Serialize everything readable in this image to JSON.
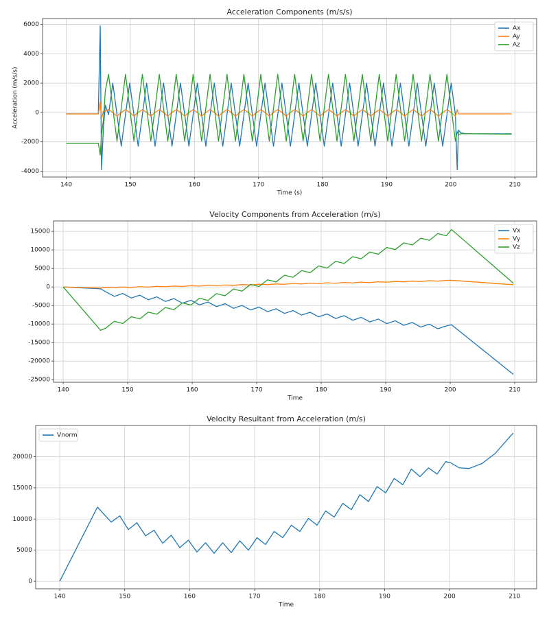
{
  "chart_data": [
    {
      "type": "line",
      "title": "Acceleration Components (m/s/s)",
      "xlabel": "Time (s)",
      "ylabel": "Acceleration (m/s/s)",
      "xlim": [
        136.3,
        213.4
      ],
      "ylim": [
        -4400,
        6400
      ],
      "xticks": [
        140,
        150,
        160,
        170,
        180,
        190,
        200,
        210
      ],
      "yticks": [
        -4000,
        -2000,
        0,
        2000,
        4000,
        6000
      ],
      "grid": true,
      "legend": "upper right",
      "x": [
        140,
        145.0,
        145.3,
        145.5,
        145.8,
        146.1,
        146.6,
        147.26,
        147.92,
        148.58,
        149.24,
        149.9,
        150.56,
        151.22,
        151.88,
        152.54,
        153.2,
        153.86,
        154.52,
        155.18,
        155.84,
        156.5,
        157.16,
        157.82,
        158.48,
        159.14,
        159.8,
        160.46,
        161.12,
        161.78,
        162.44,
        163.1,
        163.76,
        164.42,
        165.08,
        165.74,
        166.4,
        167.06,
        167.72,
        168.38,
        169.04,
        169.7,
        170.36,
        171.02,
        171.68,
        172.34,
        173.0,
        173.66,
        174.32,
        174.98,
        175.64,
        176.3,
        176.96,
        177.62,
        178.28,
        178.94,
        179.6,
        180.26,
        180.92,
        181.58,
        182.24,
        182.9,
        183.56,
        184.22,
        184.88,
        185.54,
        186.2,
        186.86,
        187.52,
        188.18,
        188.84,
        189.5,
        190.16,
        190.82,
        191.48,
        192.14,
        192.8,
        193.46,
        194.12,
        194.78,
        195.44,
        196.1,
        196.76,
        197.42,
        198.08,
        198.74,
        199.4,
        200.06,
        200.72,
        201.0,
        201.2,
        201.6,
        202.5,
        209.5
      ],
      "series": [
        {
          "name": "Ax",
          "color": "#1f77b4",
          "values": [
            -100,
            -100,
            5900,
            -3900,
            -1000,
            500,
            -150,
            2000,
            -150,
            -2300,
            -150,
            2000,
            -150,
            -2300,
            -150,
            2000,
            -150,
            -2300,
            -150,
            2000,
            -150,
            -2300,
            -150,
            2000,
            -150,
            -2300,
            -150,
            2000,
            -150,
            -2300,
            -150,
            2000,
            -150,
            -2300,
            -150,
            2000,
            -150,
            -2300,
            -150,
            2000,
            -150,
            -2300,
            -150,
            2000,
            -150,
            -2300,
            -150,
            2000,
            -150,
            -2300,
            -150,
            2000,
            -150,
            -2300,
            -150,
            2000,
            -150,
            -2300,
            -150,
            2000,
            -150,
            -2300,
            -150,
            2000,
            -150,
            -2300,
            -150,
            2000,
            -150,
            -2300,
            -150,
            2000,
            -150,
            -2300,
            -150,
            2000,
            -150,
            -2300,
            -150,
            2000,
            -150,
            -2300,
            -150,
            2000,
            -150,
            -2300,
            -150,
            2000,
            -150,
            -3900,
            -1200,
            -1400,
            -1450,
            -1450
          ]
        },
        {
          "name": "Ay",
          "color": "#ff7f0e",
          "values": [
            -100,
            -100,
            700,
            -400,
            100,
            100,
            200,
            0,
            -250,
            0,
            200,
            0,
            -250,
            0,
            200,
            0,
            -250,
            0,
            200,
            0,
            -250,
            0,
            200,
            0,
            -250,
            0,
            200,
            0,
            -250,
            0,
            200,
            0,
            -250,
            0,
            200,
            0,
            -250,
            0,
            200,
            0,
            -250,
            0,
            200,
            0,
            -250,
            0,
            200,
            0,
            -250,
            0,
            200,
            0,
            -250,
            0,
            200,
            0,
            -250,
            0,
            200,
            0,
            -250,
            0,
            200,
            0,
            -250,
            0,
            200,
            0,
            -250,
            0,
            200,
            0,
            -250,
            0,
            200,
            0,
            -250,
            0,
            200,
            0,
            -250,
            0,
            200,
            0,
            -250,
            0,
            200,
            0,
            -250,
            200,
            -100,
            -100,
            -100,
            -100
          ]
        },
        {
          "name": "Az",
          "color": "#2ca02c",
          "values": [
            -2100,
            -2100,
            -2900,
            -1500,
            -500,
            1500,
            2600,
            300,
            -1950,
            300,
            2600,
            300,
            -1950,
            300,
            2600,
            300,
            -1950,
            300,
            2600,
            300,
            -1950,
            300,
            2600,
            300,
            -1950,
            300,
            2600,
            300,
            -1950,
            300,
            2600,
            300,
            -1950,
            300,
            2600,
            300,
            -1950,
            300,
            2600,
            300,
            -1950,
            300,
            2600,
            300,
            -1950,
            300,
            2600,
            300,
            -1950,
            300,
            2600,
            300,
            -1950,
            300,
            2600,
            300,
            -1950,
            300,
            2600,
            300,
            -1950,
            300,
            2600,
            300,
            -1950,
            300,
            2600,
            300,
            -1950,
            300,
            2600,
            300,
            -1950,
            300,
            2600,
            300,
            -1950,
            300,
            2600,
            300,
            -1950,
            300,
            2600,
            300,
            -1950,
            300,
            2600,
            300,
            -1950,
            -1300,
            -1500,
            -1450,
            -1450,
            -1480
          ]
        }
      ]
    },
    {
      "type": "line",
      "title": "Velocity Components from Acceleration (m/s)",
      "xlabel": "Time",
      "xlim": [
        138.5,
        213.4
      ],
      "ylim": [
        -25700,
        17800
      ],
      "xticks": [
        140,
        150,
        160,
        170,
        180,
        190,
        200,
        210
      ],
      "yticks": [
        -25000,
        -20000,
        -15000,
        -10000,
        -5000,
        0,
        5000,
        10000,
        15000
      ],
      "grid": true,
      "legend": "upper right",
      "x": [
        140,
        145.8,
        146.6,
        147.92,
        149.24,
        150.56,
        151.88,
        153.2,
        154.52,
        155.84,
        157.16,
        158.48,
        159.8,
        161.12,
        162.44,
        163.76,
        165.08,
        166.4,
        167.72,
        169.04,
        170.36,
        171.68,
        173.0,
        174.32,
        175.64,
        176.96,
        178.28,
        179.6,
        180.92,
        182.24,
        183.56,
        184.88,
        186.2,
        187.52,
        188.84,
        190.16,
        191.48,
        192.8,
        194.12,
        195.44,
        196.76,
        198.08,
        199.4,
        200.2,
        209.8
      ],
      "series": [
        {
          "name": "Vx",
          "color": "#1f77b4",
          "values": [
            0,
            -500,
            -1300,
            -2530,
            -1760,
            -2990,
            -2220,
            -3450,
            -2680,
            -3910,
            -3140,
            -4370,
            -3600,
            -4830,
            -4060,
            -5290,
            -4520,
            -5750,
            -4980,
            -6210,
            -5440,
            -6670,
            -5900,
            -7130,
            -6360,
            -7590,
            -6820,
            -8050,
            -7280,
            -8510,
            -7740,
            -8970,
            -8200,
            -9430,
            -8660,
            -9890,
            -9120,
            -10350,
            -9580,
            -10810,
            -10040,
            -11270,
            -10500,
            -10200,
            -23600
          ]
        },
        {
          "name": "Vy",
          "color": "#ff7f0e",
          "values": [
            0,
            -300,
            -120,
            -232,
            -25,
            -137,
            70,
            -43,
            165,
            52,
            260,
            147,
            355,
            242,
            450,
            337,
            545,
            432,
            640,
            527,
            735,
            622,
            830,
            717,
            925,
            812,
            1020,
            907,
            1115,
            1002,
            1210,
            1097,
            1305,
            1192,
            1400,
            1287,
            1495,
            1382,
            1590,
            1477,
            1685,
            1572,
            1780,
            1800,
            600
          ]
        },
        {
          "name": "Vz",
          "color": "#2ca02c",
          "values": [
            0,
            -11700,
            -11100,
            -9277,
            -9854,
            -8031,
            -8608,
            -6785,
            -7362,
            -5539,
            -6116,
            -4293,
            -4870,
            -3047,
            -3624,
            -1801,
            -2378,
            -555,
            -1132,
            691,
            114,
            1937,
            1360,
            3183,
            2606,
            4429,
            3852,
            5675,
            5098,
            6921,
            6344,
            8167,
            7590,
            9413,
            8836,
            10659,
            10082,
            11905,
            11328,
            13151,
            12574,
            14397,
            13820,
            15500,
            1000
          ]
        }
      ]
    },
    {
      "type": "line",
      "title": "Velocity Resultant from Acceleration (m/s)",
      "xlabel": "Time",
      "xlim": [
        136.3,
        213.4
      ],
      "ylim": [
        -1200,
        25000
      ],
      "xticks": [
        140,
        150,
        160,
        170,
        180,
        190,
        200,
        210
      ],
      "yticks": [
        0,
        5000,
        10000,
        15000,
        20000
      ],
      "grid": true,
      "legend": "upper left",
      "x": [
        140,
        145.8,
        146.6,
        147.92,
        149.24,
        150.56,
        151.88,
        153.2,
        154.52,
        155.84,
        157.16,
        158.48,
        159.8,
        161.12,
        162.44,
        163.76,
        165.08,
        166.4,
        167.72,
        169.04,
        170.36,
        171.68,
        173.0,
        174.32,
        175.64,
        176.96,
        178.28,
        179.6,
        180.92,
        182.24,
        183.56,
        184.88,
        186.2,
        187.52,
        188.84,
        190.16,
        191.48,
        192.8,
        194.12,
        195.44,
        196.76,
        198.08,
        199.4,
        200.2,
        201.5,
        203,
        205,
        207,
        209.8
      ],
      "series": [
        {
          "name": "Vnorm",
          "color": "#1f77b4",
          "values": [
            0,
            11900,
            11000,
            9500,
            10500,
            8300,
            9400,
            7300,
            8200,
            6100,
            7400,
            5400,
            6600,
            4700,
            6200,
            4500,
            6200,
            4600,
            6500,
            5000,
            7000,
            5900,
            8000,
            7000,
            9000,
            8000,
            10100,
            9000,
            11300,
            10300,
            12500,
            11500,
            13900,
            12800,
            15200,
            14200,
            16500,
            15500,
            18000,
            16800,
            18200,
            17200,
            19200,
            19000,
            18200,
            18100,
            18900,
            20500,
            23800
          ]
        }
      ]
    }
  ]
}
